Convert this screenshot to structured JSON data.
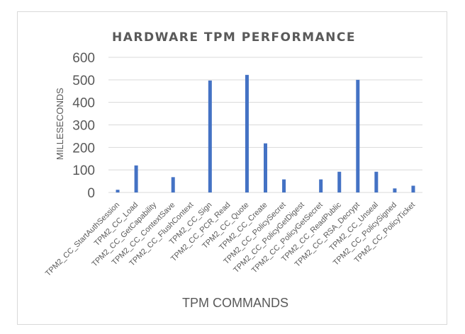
{
  "chart_data": {
    "type": "bar",
    "title": "HARDWARE TPM PERFORMANCE",
    "xlabel": "TPM COMMANDS",
    "ylabel": "MILLESECONDS",
    "ylim": [
      0,
      600
    ],
    "yticks": [
      0,
      100,
      200,
      300,
      400,
      500,
      600
    ],
    "grid": true,
    "legend": "none",
    "bar_color": "#4472c4",
    "categories": [
      "TPM2_CC_StartAuthSession",
      "TPM2_CC_Load",
      "TPM2_CC_GetCapability",
      "TPM2_CC_ContextSave",
      "TPM2_CC_FlushContext",
      "TPM2_CC_Sign",
      "TPM2_CC_PCR_Read",
      "TPM2_CC_Quote",
      "TPM2_CC_Create",
      "TPM2_CC_PolicySecret",
      "TPM2_CC_PolicyGetDigest",
      "TPM2_CC_PolicyGetSecret",
      "TPM2_CC_ReadPublic",
      "TPM2_CC_RSA_Decrypt",
      "TPM2_CC_Unseal",
      "TPM2_CC_PolicySigned",
      "TPM2_CC_PolicyTicket"
    ],
    "values": [
      12,
      120,
      0,
      68,
      0,
      497,
      0,
      522,
      218,
      58,
      0,
      58,
      92,
      500,
      92,
      18,
      30
    ]
  }
}
